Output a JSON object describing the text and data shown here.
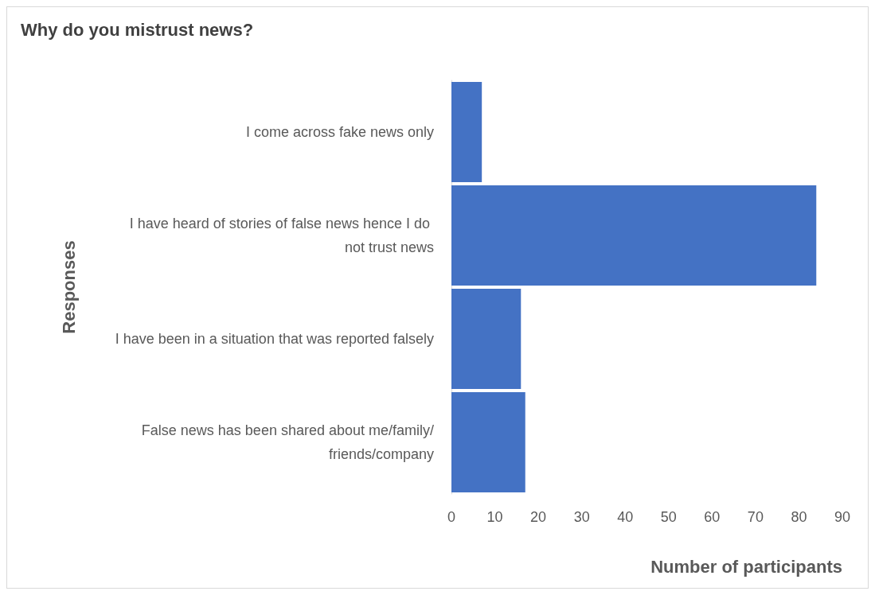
{
  "chart_data": {
    "type": "bar",
    "orientation": "horizontal",
    "title": "Why do you mistrust news?",
    "xlabel": "Number of participants",
    "ylabel": "Responses",
    "categories": [
      "I come across fake news only",
      "I have heard of stories of false news hence I do not trust news",
      "I have been in a situation that was reported falsely",
      "False news has been shared about me/family/friends/company"
    ],
    "values": [
      7,
      84,
      16,
      17
    ],
    "color": "#4472c4",
    "xlim": [
      0,
      90
    ],
    "xticks": [
      0,
      10,
      20,
      30,
      40,
      50,
      60,
      70,
      80,
      90
    ],
    "grid": false
  }
}
